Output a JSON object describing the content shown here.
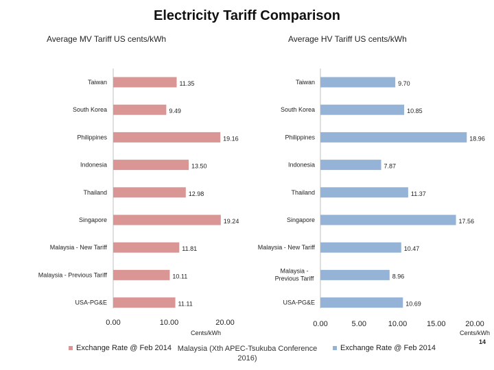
{
  "title": "Electricity Tariff Comparison",
  "footer": {
    "source": "Malaysia (Xth APEC-Tsukuba Conference 2016)",
    "page_number": "14"
  },
  "colors": {
    "mv_bar": "#d99694",
    "hv_bar": "#95b3d7"
  },
  "chart_data": [
    {
      "type": "bar",
      "orientation": "horizontal",
      "title": "Average MV Tariff US cents/kWh",
      "xlabel": "Cents/kWh",
      "categories": [
        "Taiwan",
        "South Korea",
        "Philippines",
        "Indonesia",
        "Thailand",
        "Singapore",
        "Malaysia - New Tariff",
        "Malaysia - Previous Tariff",
        "USA-PG&E"
      ],
      "value_labels": [
        "11.35",
        "9.49",
        "19.16",
        "13.50",
        "12.98",
        "19.24",
        "11.81",
        "10.11",
        "11.11"
      ],
      "values": [
        11.35,
        9.49,
        19.16,
        13.5,
        12.98,
        19.24,
        11.81,
        10.11,
        11.11
      ],
      "xlim": [
        0,
        20
      ],
      "xticks": [
        "0.00",
        "10.00",
        "20.00"
      ],
      "legend": "Exchange Rate @ Feb 2014",
      "legend_position": "bottom-left",
      "grid": false
    },
    {
      "type": "bar",
      "orientation": "horizontal",
      "title": "Average HV Tariff US cents/kWh",
      "xlabel": "Cents/kWh",
      "categories": [
        "Taiwan",
        "South Korea",
        "Philippines",
        "Indonesia",
        "Thailand",
        "Singapore",
        "Malaysia - New Tariff",
        "Malaysia - Previous Tariff",
        "USA-PG&E"
      ],
      "value_labels": [
        "9.70",
        "10.85",
        "18.96",
        "7.87",
        "11.37",
        "17.56",
        "10.47",
        "8.96",
        "10.69"
      ],
      "values": [
        9.7,
        10.85,
        18.96,
        7.87,
        11.37,
        17.56,
        10.47,
        8.96,
        10.69
      ],
      "xlim": [
        0,
        20
      ],
      "xticks": [
        "0.00",
        "5.00",
        "10.00",
        "15.00",
        "20.00"
      ],
      "legend": "Exchange Rate @ Feb 2014",
      "legend_position": "bottom-right",
      "grid": false
    }
  ]
}
